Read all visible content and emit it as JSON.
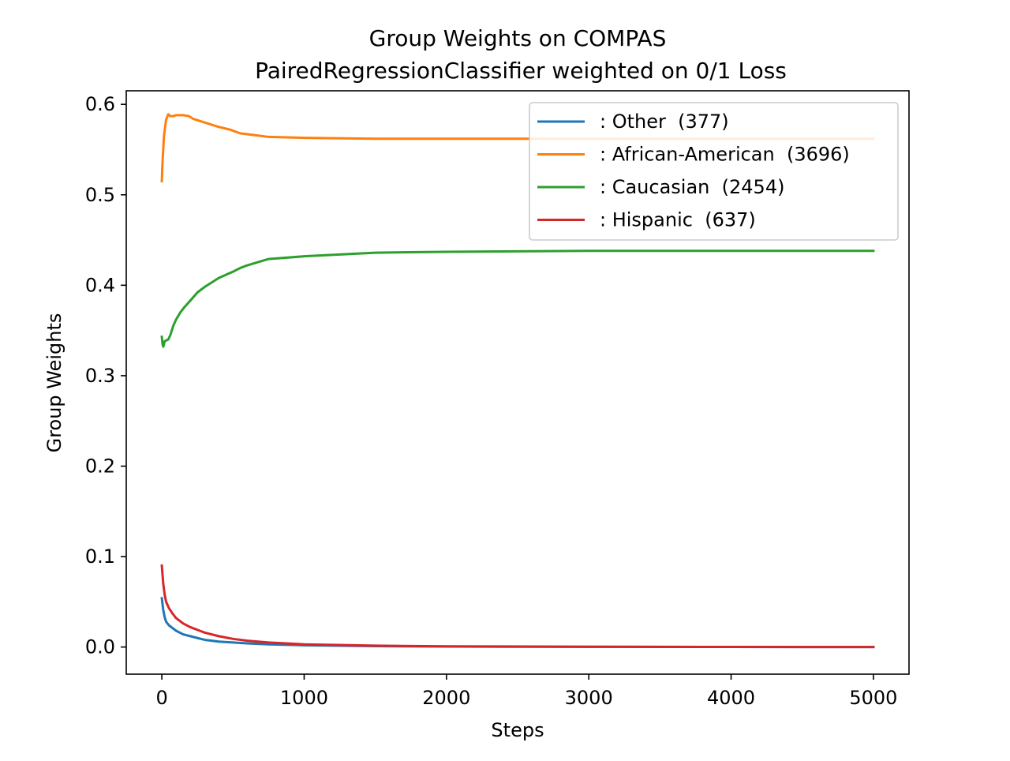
{
  "chart_data": {
    "type": "line",
    "title": "Group Weights on COMPAS",
    "subtitle": "PairedRegressionClassifier weighted on 0/1 Loss",
    "xlabel": "Steps",
    "ylabel": "Group Weights",
    "xlim": [
      -250,
      5250
    ],
    "ylim": [
      -0.03,
      0.615
    ],
    "xticks": [
      0,
      1000,
      2000,
      3000,
      4000,
      5000
    ],
    "xtick_labels": [
      "0",
      "1000",
      "2000",
      "3000",
      "4000",
      "5000"
    ],
    "yticks": [
      0.0,
      0.1,
      0.2,
      0.3,
      0.4,
      0.5,
      0.6
    ],
    "ytick_labels": [
      "0.0",
      "0.1",
      "0.2",
      "0.3",
      "0.4",
      "0.5",
      "0.6"
    ],
    "grid": false,
    "legend_position": "upper right",
    "series": [
      {
        "name": ": Other  (377)",
        "color": "#1f77b4",
        "x": [
          0,
          10,
          20,
          30,
          50,
          75,
          100,
          150,
          200,
          300,
          400,
          500,
          600,
          750,
          1000,
          1500,
          2000,
          3000,
          4000,
          5000
        ],
        "y": [
          0.054,
          0.041,
          0.033,
          0.028,
          0.024,
          0.021,
          0.018,
          0.014,
          0.012,
          0.008,
          0.006,
          0.005,
          0.004,
          0.003,
          0.002,
          0.001,
          0.0005,
          0.0002,
          0.0001,
          0.0
        ]
      },
      {
        "name": ": African-American  (3696)",
        "color": "#ff7f0e",
        "x": [
          0,
          5,
          15,
          30,
          45,
          60,
          80,
          100,
          150,
          190,
          220,
          260,
          320,
          400,
          480,
          550,
          650,
          750,
          1000,
          1500,
          2000,
          3000,
          4000,
          5000
        ],
        "y": [
          0.515,
          0.536,
          0.565,
          0.583,
          0.589,
          0.587,
          0.587,
          0.588,
          0.588,
          0.587,
          0.584,
          0.582,
          0.579,
          0.575,
          0.572,
          0.568,
          0.566,
          0.564,
          0.563,
          0.562,
          0.562,
          0.562,
          0.562,
          0.562
        ]
      },
      {
        "name": ": Caucasian  (2454)",
        "color": "#2ca02c",
        "x": [
          0,
          5,
          10,
          20,
          30,
          45,
          60,
          80,
          100,
          130,
          160,
          200,
          250,
          300,
          400,
          500,
          550,
          600,
          750,
          1000,
          1500,
          2000,
          3000,
          4000,
          5000
        ],
        "y": [
          0.343,
          0.335,
          0.332,
          0.338,
          0.339,
          0.34,
          0.345,
          0.355,
          0.362,
          0.37,
          0.376,
          0.383,
          0.392,
          0.398,
          0.408,
          0.415,
          0.419,
          0.422,
          0.429,
          0.432,
          0.436,
          0.437,
          0.438,
          0.438,
          0.438
        ]
      },
      {
        "name": ": Hispanic  (637)",
        "color": "#d62728",
        "x": [
          0,
          10,
          20,
          30,
          50,
          75,
          100,
          150,
          200,
          300,
          400,
          500,
          600,
          750,
          1000,
          1500,
          2000,
          3000,
          4000,
          5000
        ],
        "y": [
          0.09,
          0.07,
          0.058,
          0.05,
          0.043,
          0.037,
          0.032,
          0.026,
          0.022,
          0.016,
          0.012,
          0.009,
          0.007,
          0.005,
          0.003,
          0.0015,
          0.0008,
          0.0003,
          0.0001,
          0.0
        ]
      }
    ]
  }
}
